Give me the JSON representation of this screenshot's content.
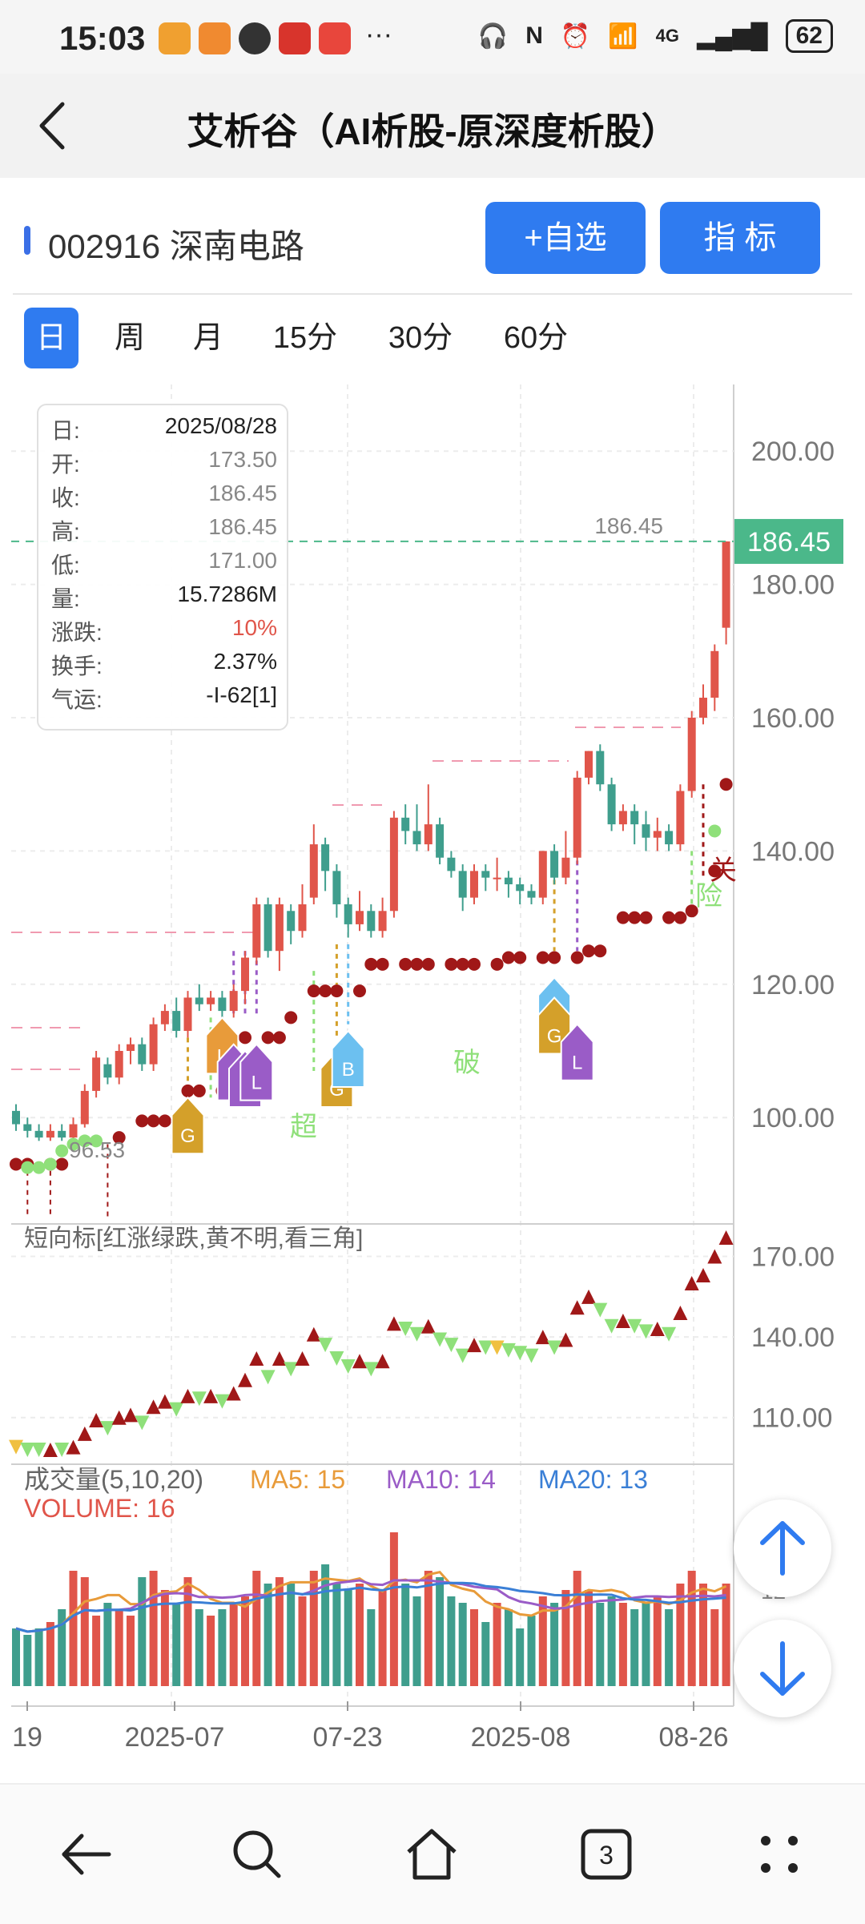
{
  "status_bar": {
    "time": "15:03",
    "network": "4G",
    "battery": "62"
  },
  "header": {
    "title": "艾析谷（AI析股-原深度析股）"
  },
  "stock": {
    "code_name": "002916 深南电路",
    "add_button": "+自选",
    "indicator_button": "指  标"
  },
  "periods": [
    {
      "label": "日",
      "active": true
    },
    {
      "label": "周",
      "active": false
    },
    {
      "label": "月",
      "active": false
    },
    {
      "label": "15分",
      "active": false
    },
    {
      "label": "30分",
      "active": false
    },
    {
      "label": "60分",
      "active": false
    }
  ],
  "info_panel": {
    "rows": [
      {
        "label": "日:",
        "value": "2025/08/28"
      },
      {
        "label": "开:",
        "value": "173.50"
      },
      {
        "label": "收:",
        "value": "186.45"
      },
      {
        "label": "高:",
        "value": "186.45"
      },
      {
        "label": "低:",
        "value": "171.00"
      },
      {
        "label": "量:",
        "value": "15.7286M"
      },
      {
        "label": "涨跌:",
        "value": "10%"
      },
      {
        "label": "换手:",
        "value": "2.37%"
      },
      {
        "label": "气运:",
        "value": "-I-62[1]"
      }
    ]
  },
  "chart_data": {
    "type": "candlestick",
    "main": {
      "y_ticks": [
        "200.00",
        "180.00",
        "160.00",
        "140.00",
        "120.00",
        "100.00"
      ],
      "ylim": [
        85,
        210
      ],
      "last_price_label": "186.45",
      "high_marker_label": "186.45",
      "low_marker_label": "96.53",
      "candles": [
        [
          101,
          99,
          102,
          98
        ],
        [
          99,
          98,
          100,
          97
        ],
        [
          98,
          97,
          99,
          96.5
        ],
        [
          97,
          98,
          99,
          96.5
        ],
        [
          98,
          97,
          99,
          96.5
        ],
        [
          97,
          99,
          100,
          96.8
        ],
        [
          99,
          104,
          105,
          98.5
        ],
        [
          104,
          109,
          110,
          103
        ],
        [
          108,
          106,
          109,
          105
        ],
        [
          106,
          110,
          111,
          105
        ],
        [
          110,
          111,
          112,
          108
        ],
        [
          111,
          108,
          112,
          107
        ],
        [
          108,
          114,
          115,
          107
        ],
        [
          114,
          116,
          117,
          113
        ],
        [
          116,
          113,
          118,
          112
        ],
        [
          113,
          118,
          119,
          112
        ],
        [
          118,
          117,
          120,
          116
        ],
        [
          117,
          118,
          119,
          116
        ],
        [
          118,
          116,
          119,
          115
        ],
        [
          116,
          119,
          120,
          115
        ],
        [
          119,
          124,
          125,
          117
        ],
        [
          124,
          132,
          133,
          123
        ],
        [
          132,
          125,
          133,
          124
        ],
        [
          125,
          132,
          133,
          122
        ],
        [
          131,
          128,
          132,
          126
        ],
        [
          128,
          132,
          135,
          127
        ],
        [
          133,
          141,
          144,
          132
        ],
        [
          141,
          137,
          142,
          134
        ],
        [
          137,
          132,
          138,
          130
        ],
        [
          132,
          129,
          133,
          127
        ],
        [
          129,
          131,
          134,
          128
        ],
        [
          131,
          128,
          132,
          127
        ],
        [
          128,
          131,
          133,
          127
        ],
        [
          131,
          145,
          146,
          130
        ],
        [
          145,
          143,
          147,
          141
        ],
        [
          143,
          141,
          147,
          140
        ],
        [
          141,
          144,
          150,
          140
        ],
        [
          144,
          139,
          145,
          138
        ],
        [
          139,
          137,
          140,
          136
        ],
        [
          137,
          133,
          138,
          131
        ],
        [
          133,
          137,
          138,
          132
        ],
        [
          137,
          136,
          138,
          134
        ],
        [
          136,
          136,
          139,
          134
        ],
        [
          136,
          135,
          137,
          133
        ],
        [
          135,
          134,
          136,
          132
        ],
        [
          134,
          133,
          135,
          132
        ],
        [
          133,
          140,
          140,
          132
        ],
        [
          140,
          136,
          141,
          135
        ],
        [
          136,
          139,
          143,
          135
        ],
        [
          139,
          151,
          152,
          138
        ],
        [
          151,
          155,
          155,
          150
        ],
        [
          155,
          150,
          156,
          149
        ],
        [
          150,
          144,
          151,
          143
        ],
        [
          144,
          146,
          147,
          143
        ],
        [
          146,
          144,
          147,
          141
        ],
        [
          144,
          142,
          146,
          140
        ],
        [
          142,
          143,
          145,
          140
        ],
        [
          143,
          141,
          144,
          140
        ],
        [
          141,
          149,
          150,
          140
        ],
        [
          149,
          160,
          161,
          148
        ],
        [
          160,
          163,
          165,
          159
        ],
        [
          163,
          170,
          171,
          161
        ],
        [
          173.5,
          186.45,
          186.45,
          171
        ]
      ]
    },
    "indicator": {
      "title": "短向标[红涨绿跌,黄不明,看三角]",
      "y_ticks": [
        "170.00",
        "140.00",
        "110.00"
      ],
      "ylim": [
        95,
        180
      ]
    },
    "volume": {
      "title": "成交量(5,10,20)",
      "ma5": "MA5: 15",
      "ma10": "MA10: 14",
      "ma20": "MA20: 13",
      "volume_label": "VOLUME: 16",
      "y_tick": "12",
      "values": [
        9,
        8,
        9,
        10,
        12,
        18,
        17,
        11,
        13,
        12,
        11,
        17,
        18,
        15,
        13,
        17,
        12,
        11,
        12,
        13,
        14,
        18,
        16,
        17,
        16,
        14,
        18,
        19,
        16,
        15,
        16,
        12,
        15,
        24,
        16,
        14,
        18,
        17,
        14,
        13,
        12,
        10,
        13,
        12,
        9,
        11,
        14,
        13,
        15,
        18,
        15,
        13,
        14,
        13,
        12,
        13,
        14,
        12,
        16,
        18,
        16,
        12,
        16
      ],
      "colors": {
        "up": "#e0554a",
        "down": "#3f9e8d"
      }
    },
    "x_ticks": [
      "19",
      "2025-07",
      "07-23",
      "2025-08",
      "08-26"
    ],
    "signal_labels": [
      "超",
      "破",
      "险",
      "关"
    ],
    "arrow_letters": [
      "G",
      "L",
      "B"
    ]
  },
  "colors": {
    "accent": "#2f7bf0",
    "up": "#e0554a",
    "down": "#3f9e8d",
    "ma5": "#e89b3a",
    "ma10": "#9a5cc7",
    "ma20": "#3a7fd6",
    "dot": "#a01818"
  }
}
